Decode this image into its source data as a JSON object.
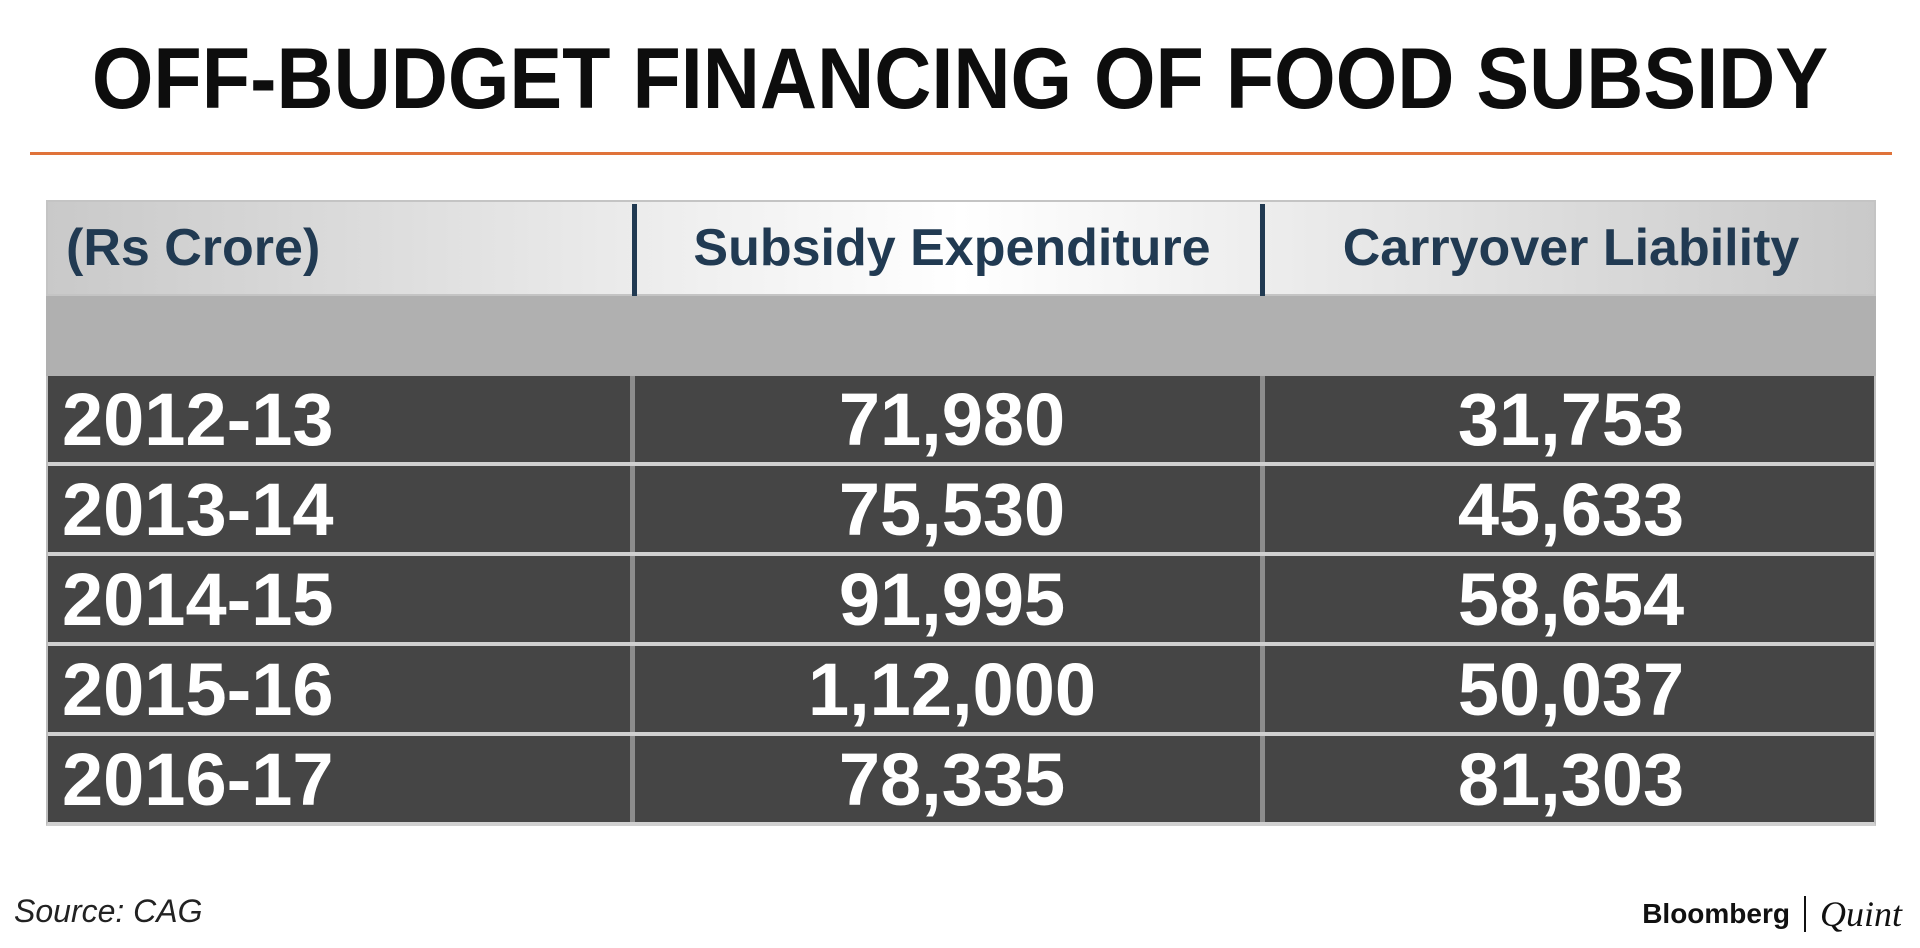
{
  "title": "OFF-BUDGET FINANCING OF FOOD SUBSIDY",
  "source": "Source: CAG",
  "brand": {
    "primary": "Bloomberg",
    "secondary": "Quint"
  },
  "colors": {
    "accent_rule": "#e0733a",
    "header_text": "#213a52",
    "row_background": "#454545",
    "row_text": "#ffffff"
  },
  "chart_data": {
    "type": "table",
    "columns": [
      "(Rs Crore)",
      "Subsidy Expenditure",
      "Carryover Liability"
    ],
    "rows": [
      {
        "year": "2012-13",
        "subsidy_expenditure": "71,980",
        "carryover_liability": "31,753"
      },
      {
        "year": "2013-14",
        "subsidy_expenditure": "75,530",
        "carryover_liability": "45,633"
      },
      {
        "year": "2014-15",
        "subsidy_expenditure": "91,995",
        "carryover_liability": "58,654"
      },
      {
        "year": "2015-16",
        "subsidy_expenditure": "1,12,000",
        "carryover_liability": "50,037"
      },
      {
        "year": "2016-17",
        "subsidy_expenditure": "78,335",
        "carryover_liability": "81,303"
      }
    ]
  }
}
